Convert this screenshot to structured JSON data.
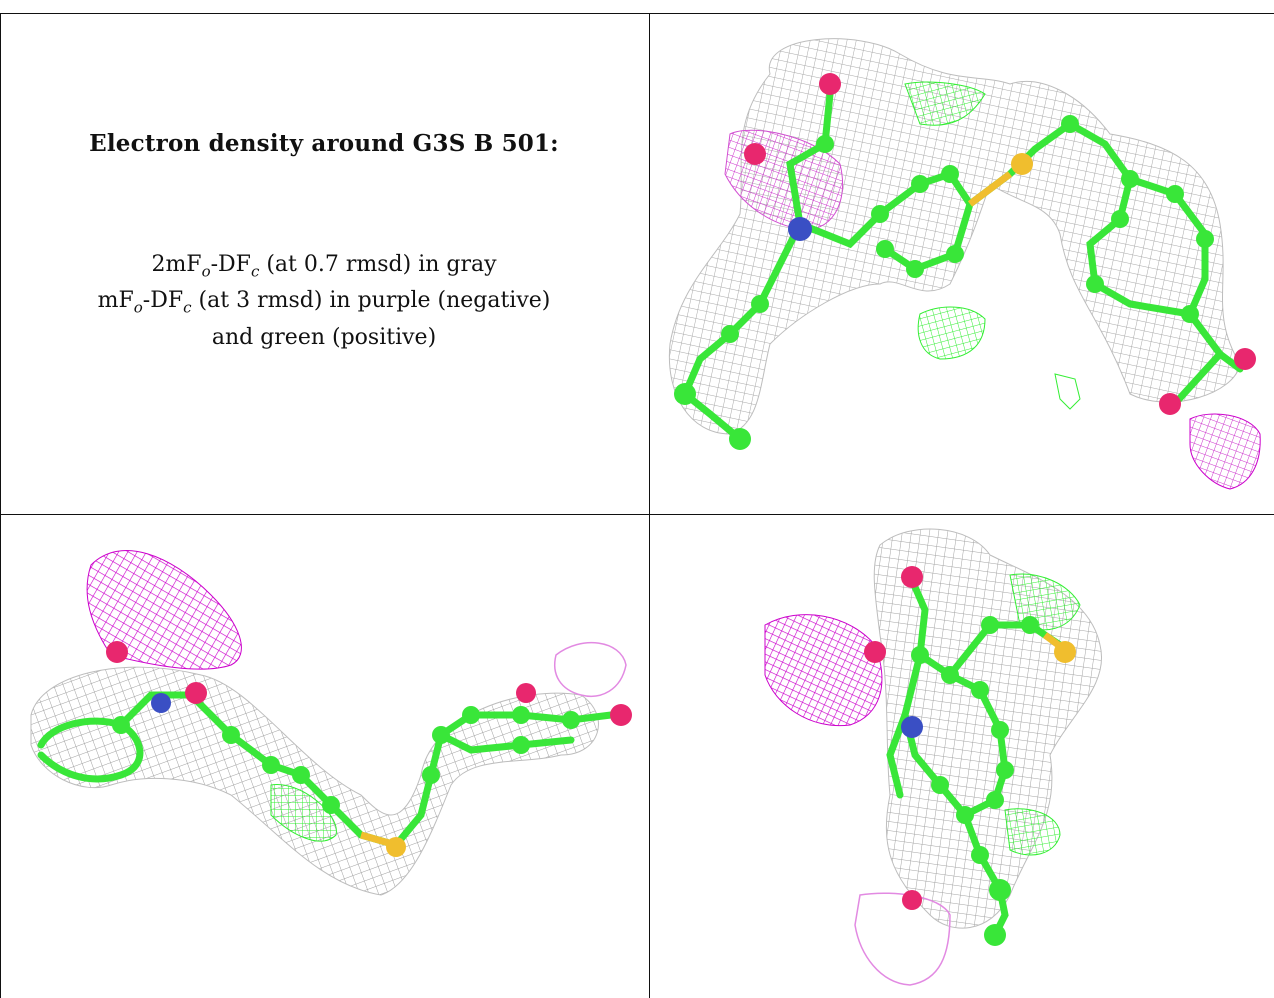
{
  "title": "Electron density around G3S B 501:",
  "legend": {
    "line1": {
      "a": "2mF",
      "a_sub": "o",
      "b": "-DF",
      "b_sub": "c",
      "c": " (at 0.7 rmsd) in gray"
    },
    "line2": {
      "a": "mF",
      "a_sub": "o",
      "b": "-DF",
      "b_sub": "c",
      "c": " (at 3 rmsd) in purple (negative)"
    },
    "line3": "and green (positive)"
  },
  "colors": {
    "mesh_gray": "#9a9a9a",
    "mesh_purple": "#cc00cc",
    "mesh_purple_light": "#e28ae2",
    "mesh_green": "#33ee33",
    "carbon": "#39e639",
    "oxygen": "#e8276e",
    "nitrogen": "#3a4fc4",
    "sulfur": "#f0be2e"
  }
}
